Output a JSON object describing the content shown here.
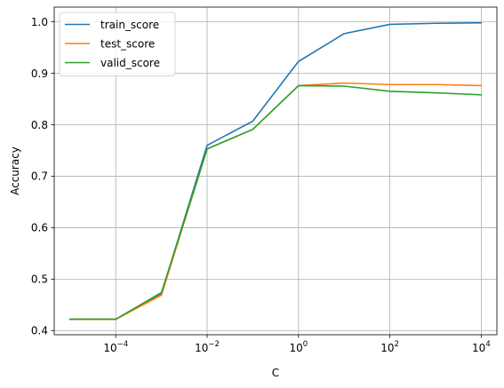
{
  "chart_data": {
    "type": "line",
    "title": "",
    "xlabel": "C",
    "ylabel": "Accuracy",
    "xscale": "log",
    "xlim": [
      4.5e-06,
      22000
    ],
    "ylim": [
      0.392,
      1.0285
    ],
    "grid": true,
    "legend_position": "upper left",
    "x": [
      1e-05,
      0.0001,
      0.001,
      0.01,
      0.1,
      1,
      10,
      100,
      1000,
      10000
    ],
    "x_ticks": [
      {
        "value": 0.0001,
        "base": "10",
        "exp": "−4"
      },
      {
        "value": 0.01,
        "base": "10",
        "exp": "−2"
      },
      {
        "value": 1,
        "base": "10",
        "exp": "0"
      },
      {
        "value": 100,
        "base": "10",
        "exp": "2"
      },
      {
        "value": 10000,
        "base": "10",
        "exp": "4"
      }
    ],
    "y_ticks": [
      {
        "value": 0.4,
        "label": "0.4"
      },
      {
        "value": 0.5,
        "label": "0.5"
      },
      {
        "value": 0.6,
        "label": "0.6"
      },
      {
        "value": 0.7,
        "label": "0.7"
      },
      {
        "value": 0.8,
        "label": "0.8"
      },
      {
        "value": 0.9,
        "label": "0.9"
      },
      {
        "value": 1.0,
        "label": "1.0"
      }
    ],
    "series": [
      {
        "name": "train_score",
        "color": "#1f77b4",
        "values": [
          0.422,
          0.422,
          0.472,
          0.76,
          0.807,
          0.923,
          0.977,
          0.995,
          0.997,
          0.998
        ]
      },
      {
        "name": "test_score",
        "color": "#ff7f0e",
        "values": [
          0.422,
          0.422,
          0.469,
          0.753,
          0.791,
          0.876,
          0.881,
          0.878,
          0.878,
          0.876
        ]
      },
      {
        "name": "valid_score",
        "color": "#2ca02c",
        "values": [
          0.422,
          0.422,
          0.474,
          0.753,
          0.791,
          0.876,
          0.875,
          0.865,
          0.862,
          0.858
        ]
      }
    ]
  }
}
